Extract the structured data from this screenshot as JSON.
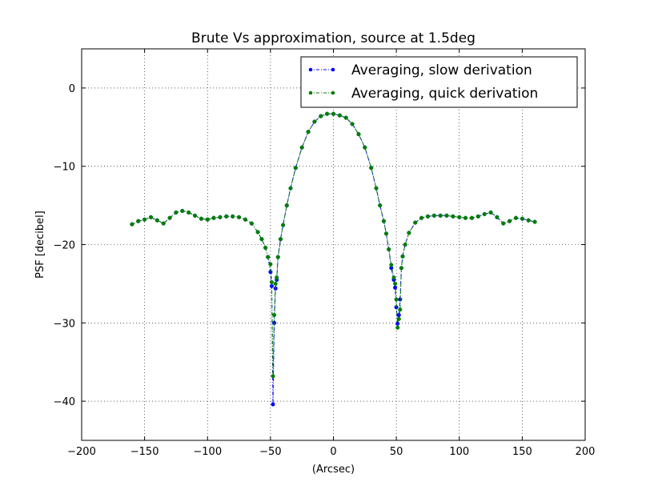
{
  "chart_data": {
    "type": "line",
    "title": "Brute Vs approximation, source at 1.5deg",
    "xlabel": "(Arcsec)",
    "ylabel": "PSF [decibel]",
    "xlim": [
      -200,
      200
    ],
    "ylim": [
      -45,
      5
    ],
    "xticks": [
      -200,
      -150,
      -100,
      -50,
      0,
      50,
      100,
      150,
      200
    ],
    "xtick_labels": [
      "−200",
      "−150",
      "−100",
      "−50",
      "0",
      "50",
      "100",
      "150",
      "200"
    ],
    "yticks": [
      0,
      -10,
      -20,
      -30,
      -40
    ],
    "ytick_labels": [
      "0",
      "−10",
      "−20",
      "−30",
      "−40"
    ],
    "grid": true,
    "legend_position": "top-right",
    "series": [
      {
        "name": "Averaging, slow derivation",
        "color": "#0000ff",
        "line_style": "dash-dot",
        "marker": "dot",
        "x": [
          -160,
          -155,
          -150,
          -145,
          -140,
          -135,
          -130,
          -125,
          -120,
          -115,
          -110,
          -105,
          -100,
          -95,
          -90,
          -85,
          -80,
          -75,
          -70,
          -65,
          -60,
          -57,
          -54,
          -52,
          -50,
          -49,
          -48,
          -47,
          -46,
          -45,
          -44,
          -42,
          -40,
          -37,
          -34,
          -30,
          -25,
          -20,
          -15,
          -10,
          -5,
          0,
          5,
          10,
          15,
          20,
          25,
          30,
          34,
          37,
          40,
          42,
          44,
          46,
          48,
          49,
          50,
          51,
          52,
          53,
          54,
          55,
          57,
          60,
          65,
          70,
          75,
          80,
          85,
          90,
          95,
          100,
          105,
          110,
          115,
          120,
          125,
          130,
          135,
          140,
          145,
          150,
          155,
          160
        ],
        "y": [
          -17.4,
          -17.0,
          -16.8,
          -16.5,
          -16.9,
          -17.3,
          -16.6,
          -15.9,
          -15.7,
          -15.9,
          -16.3,
          -16.7,
          -16.8,
          -16.6,
          -16.5,
          -16.4,
          -16.4,
          -16.5,
          -16.8,
          -17.3,
          -18.4,
          -19.3,
          -20.4,
          -21.6,
          -23.5,
          -25.3,
          -40.4,
          -30.0,
          -25.6,
          -24.5,
          -21.6,
          -19.3,
          -17.5,
          -15.0,
          -12.8,
          -10.2,
          -7.6,
          -5.6,
          -4.3,
          -3.6,
          -3.3,
          -3.3,
          -3.5,
          -3.8,
          -4.6,
          -5.9,
          -7.6,
          -10.2,
          -12.8,
          -15.0,
          -17.0,
          -18.6,
          -20.6,
          -23.0,
          -24.5,
          -25.5,
          -28.0,
          -30.1,
          -29.0,
          -27.0,
          -23.0,
          -21.5,
          -20.0,
          -18.5,
          -17.2,
          -16.6,
          -16.4,
          -16.3,
          -16.3,
          -16.3,
          -16.4,
          -16.5,
          -16.6,
          -16.6,
          -16.4,
          -16.1,
          -15.9,
          -16.5,
          -17.3,
          -17.0,
          -16.6,
          -16.7,
          -16.9,
          -17.1
        ]
      },
      {
        "name": "Averaging, quick derivation",
        "color": "#007f00",
        "line_style": "dash-dot",
        "marker": "dot",
        "x": [
          -160,
          -155,
          -150,
          -145,
          -140,
          -135,
          -130,
          -125,
          -120,
          -115,
          -110,
          -105,
          -100,
          -95,
          -90,
          -85,
          -80,
          -75,
          -70,
          -65,
          -60,
          -57,
          -54,
          -52,
          -50,
          -49,
          -48,
          -47,
          -46,
          -45,
          -44,
          -42,
          -40,
          -37,
          -34,
          -30,
          -25,
          -20,
          -15,
          -10,
          -5,
          0,
          5,
          10,
          15,
          20,
          25,
          30,
          34,
          37,
          40,
          42,
          44,
          46,
          48,
          49,
          50,
          51,
          52,
          53,
          54,
          55,
          57,
          60,
          65,
          70,
          75,
          80,
          85,
          90,
          95,
          100,
          105,
          110,
          115,
          120,
          125,
          130,
          135,
          140,
          145,
          150,
          155,
          160
        ],
        "y": [
          -17.4,
          -17.0,
          -16.8,
          -16.5,
          -16.9,
          -17.3,
          -16.6,
          -15.9,
          -15.7,
          -15.9,
          -16.3,
          -16.7,
          -16.8,
          -16.6,
          -16.5,
          -16.4,
          -16.4,
          -16.5,
          -16.8,
          -17.3,
          -18.4,
          -19.3,
          -20.4,
          -21.6,
          -22.5,
          -24.8,
          -36.8,
          -29.0,
          -25.0,
          -24.2,
          -21.6,
          -19.3,
          -17.5,
          -15.0,
          -12.8,
          -10.2,
          -7.6,
          -5.6,
          -4.3,
          -3.6,
          -3.3,
          -3.3,
          -3.5,
          -3.8,
          -4.6,
          -5.9,
          -7.6,
          -10.2,
          -12.8,
          -15.0,
          -17.0,
          -18.6,
          -20.6,
          -22.6,
          -24.2,
          -25.0,
          -27.0,
          -30.6,
          -29.5,
          -28.3,
          -23.0,
          -21.5,
          -20.0,
          -18.5,
          -17.2,
          -16.6,
          -16.4,
          -16.3,
          -16.3,
          -16.3,
          -16.4,
          -16.5,
          -16.6,
          -16.6,
          -16.4,
          -16.1,
          -15.9,
          -16.5,
          -17.3,
          -17.0,
          -16.6,
          -16.7,
          -16.9,
          -17.1
        ]
      }
    ]
  }
}
